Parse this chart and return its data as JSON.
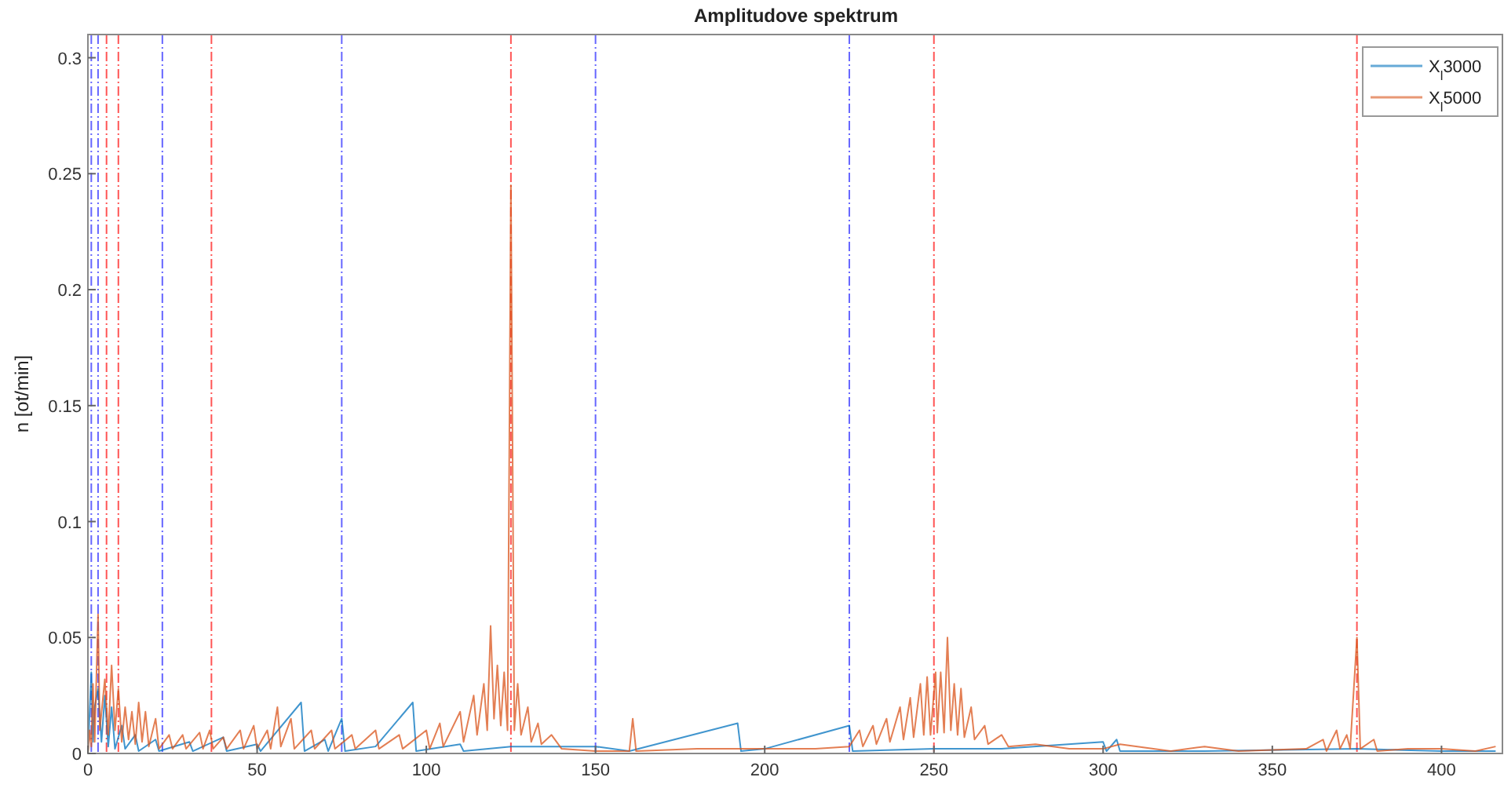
{
  "chart_data": {
    "type": "line",
    "title": "Amplitudove spektrum",
    "ylabel": "n [ot/min]",
    "xlim": [
      0,
      418
    ],
    "ylim": [
      0,
      0.31
    ],
    "xticks": [
      0,
      50,
      100,
      150,
      200,
      250,
      300,
      350,
      400
    ],
    "yticks": [
      0,
      0.05,
      0.1,
      0.15,
      0.2,
      0.25,
      0.3
    ],
    "grid": false,
    "legend": "top right",
    "line_style": "solid",
    "series": [
      {
        "name": "X$_{l}$3000",
        "color": "#0072bd",
        "x": [
          0,
          1,
          1.5,
          2,
          3,
          4,
          5,
          6,
          7,
          8,
          10,
          11,
          14,
          15,
          20,
          21,
          30,
          31,
          40,
          41,
          50,
          51,
          63,
          64,
          70,
          71,
          75,
          76,
          85,
          96,
          97,
          110,
          111,
          125,
          150,
          160,
          192,
          193,
          200,
          225,
          226,
          250,
          270,
          300,
          301,
          304,
          305,
          330,
          375,
          400,
          416
        ],
        "values": [
          0,
          0.035,
          0.005,
          0.02,
          0.028,
          0.005,
          0.025,
          0.003,
          0.02,
          0.002,
          0.012,
          0.002,
          0.008,
          0.001,
          0.006,
          0.001,
          0.005,
          0.001,
          0.007,
          0.001,
          0.004,
          0.001,
          0.022,
          0.001,
          0.006,
          0.001,
          0.015,
          0.001,
          0.003,
          0.022,
          0.001,
          0.004,
          0.001,
          0.003,
          0.003,
          0.001,
          0.013,
          0.001,
          0.002,
          0.012,
          0.001,
          0.002,
          0.002,
          0.005,
          0.001,
          0.006,
          0.001,
          0.001,
          0.002,
          0.001,
          0.001
        ]
      },
      {
        "name": "X$_{l}$5000",
        "color": "#d95319",
        "x": [
          0,
          0.5,
          1,
          1.5,
          2,
          3,
          3.5,
          5,
          6,
          7,
          8,
          9,
          10,
          11,
          12,
          13,
          14,
          15,
          16,
          17,
          18,
          20,
          21,
          24,
          25,
          28,
          29,
          33,
          34,
          36,
          37,
          40,
          41,
          45,
          46,
          49,
          50,
          53,
          54,
          56,
          57,
          60,
          61,
          66,
          67,
          72,
          73,
          78,
          79,
          85,
          86,
          92,
          93,
          100,
          101,
          104,
          105,
          110,
          111,
          114,
          115,
          117,
          118,
          119,
          120,
          121,
          122,
          123,
          124,
          125,
          126,
          127,
          128,
          130,
          131,
          133,
          134,
          137,
          140,
          150,
          160,
          161,
          162,
          180,
          200,
          215,
          225,
          228,
          229,
          232,
          233,
          236,
          237,
          240,
          241,
          243,
          244,
          246,
          247,
          248,
          249,
          250.5,
          251,
          252,
          253,
          254,
          255,
          256,
          257,
          258,
          259,
          261,
          262,
          265,
          266,
          270,
          272,
          280,
          290,
          300,
          305,
          320,
          330,
          340,
          360,
          365,
          366,
          369,
          370,
          372,
          373,
          375,
          376,
          380,
          381,
          390,
          400,
          410,
          416
        ],
        "values": [
          0,
          0.01,
          0.003,
          0.03,
          0.005,
          0.06,
          0.01,
          0.032,
          0.008,
          0.038,
          0.01,
          0.028,
          0.005,
          0.02,
          0.006,
          0.018,
          0.004,
          0.022,
          0.005,
          0.018,
          0.003,
          0.015,
          0.002,
          0.008,
          0.002,
          0.008,
          0.002,
          0.009,
          0.002,
          0.01,
          0.002,
          0.007,
          0.002,
          0.01,
          0.002,
          0.012,
          0.002,
          0.01,
          0.002,
          0.02,
          0.003,
          0.015,
          0.002,
          0.01,
          0.002,
          0.01,
          0.002,
          0.008,
          0.002,
          0.01,
          0.002,
          0.008,
          0.002,
          0.01,
          0.002,
          0.013,
          0.003,
          0.018,
          0.005,
          0.025,
          0.008,
          0.03,
          0.01,
          0.055,
          0.015,
          0.038,
          0.012,
          0.035,
          0.01,
          0.245,
          0.01,
          0.03,
          0.008,
          0.02,
          0.005,
          0.013,
          0.004,
          0.008,
          0.002,
          0.001,
          0.001,
          0.015,
          0.001,
          0.002,
          0.002,
          0.002,
          0.003,
          0.01,
          0.003,
          0.012,
          0.004,
          0.015,
          0.005,
          0.02,
          0.006,
          0.024,
          0.007,
          0.03,
          0.008,
          0.033,
          0.008,
          0.035,
          0.009,
          0.035,
          0.009,
          0.05,
          0.01,
          0.03,
          0.008,
          0.028,
          0.007,
          0.02,
          0.006,
          0.012,
          0.004,
          0.008,
          0.003,
          0.004,
          0.002,
          0.002,
          0.004,
          0.001,
          0.003,
          0.001,
          0.002,
          0.006,
          0.001,
          0.01,
          0.002,
          0.008,
          0.002,
          0.05,
          0.002,
          0.006,
          0.001,
          0.002,
          0.002,
          0.001,
          0.003
        ]
      }
    ],
    "ref_lines": [
      {
        "axis": "x",
        "value": 1,
        "color": "#6666ff",
        "line_style": "dashed"
      },
      {
        "axis": "x",
        "value": 3,
        "color": "#6666ff",
        "line_style": "dashed"
      },
      {
        "axis": "x",
        "value": 22,
        "color": "#6666ff",
        "line_style": "dashed"
      },
      {
        "axis": "x",
        "value": 75,
        "color": "#6666ff",
        "line_style": "dashed"
      },
      {
        "axis": "x",
        "value": 150,
        "color": "#6666ff",
        "line_style": "dashed"
      },
      {
        "axis": "x",
        "value": 225,
        "color": "#6666ff",
        "line_style": "dashed"
      },
      {
        "axis": "x",
        "value": 5.5,
        "color": "#ff5555",
        "line_style": "dashed"
      },
      {
        "axis": "x",
        "value": 9,
        "color": "#ff5555",
        "line_style": "dashed"
      },
      {
        "axis": "x",
        "value": 36.5,
        "color": "#ff5555",
        "line_style": "dashed"
      },
      {
        "axis": "x",
        "value": 125,
        "color": "#ff5555",
        "line_style": "dashed"
      },
      {
        "axis": "x",
        "value": 250,
        "color": "#ff5555",
        "line_style": "dashed"
      },
      {
        "axis": "x",
        "value": 375,
        "color": "#ff5555",
        "line_style": "dashed"
      }
    ]
  }
}
